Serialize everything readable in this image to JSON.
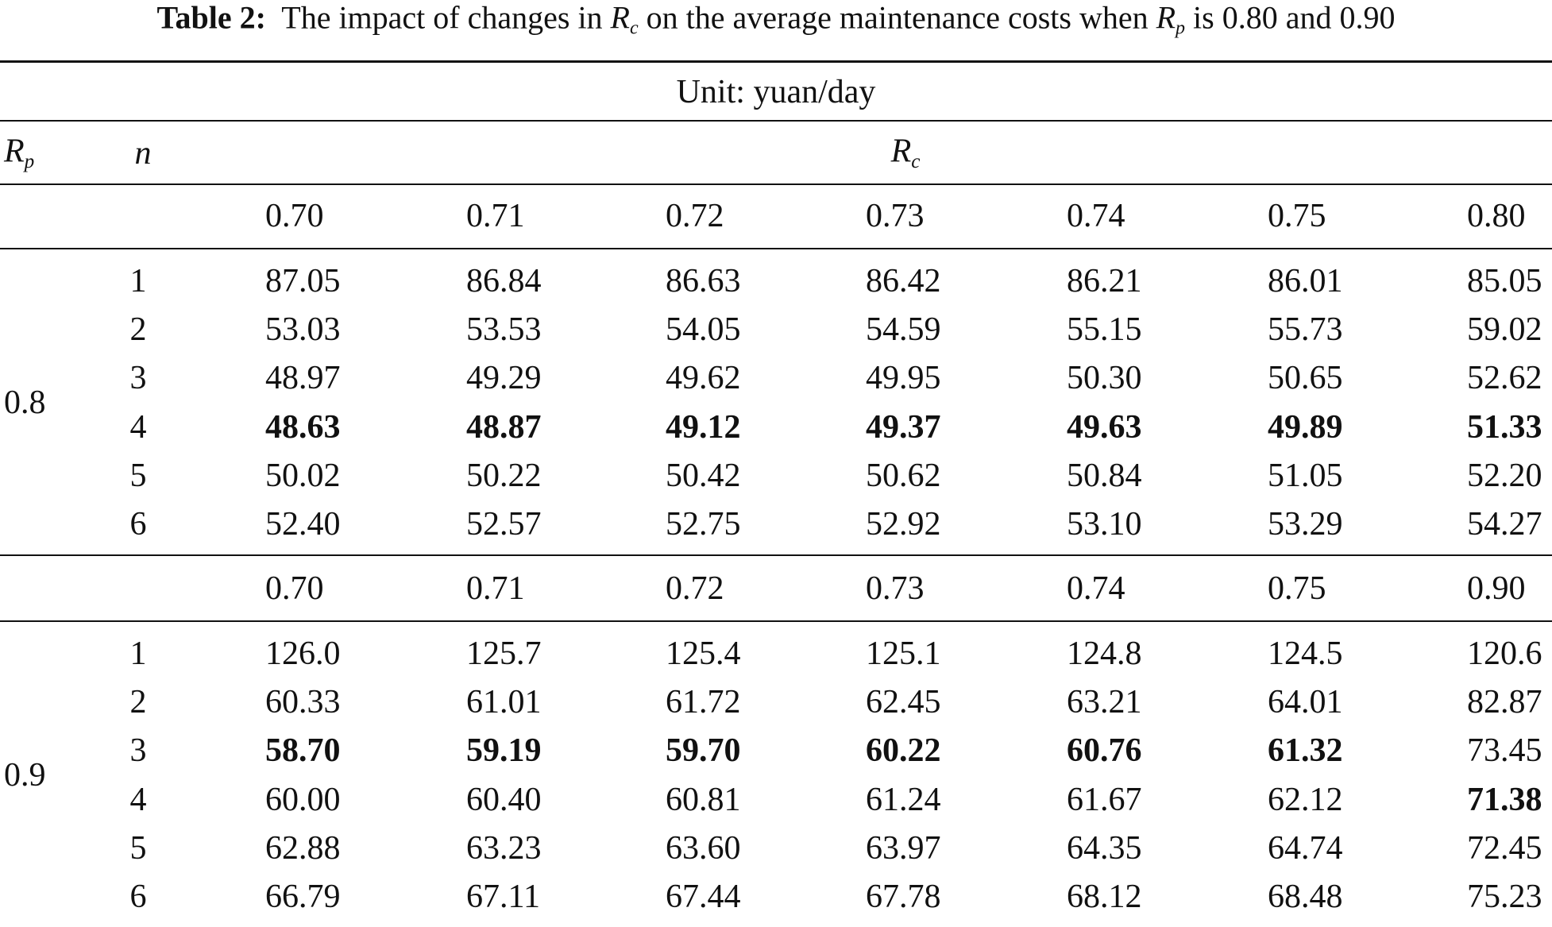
{
  "title": {
    "label": "Table 2:",
    "segments": [
      {
        "text": "The impact of changes in "
      },
      {
        "text": "R",
        "italic": true
      },
      {
        "text": "c",
        "sub": true
      },
      {
        "text": " on the average maintenance costs when "
      },
      {
        "text": "R",
        "italic": true
      },
      {
        "text": "p",
        "sub": true
      },
      {
        "text": " is 0.80 and 0.90"
      }
    ]
  },
  "unit": "Unit: yuan/day",
  "header": {
    "rp": {
      "symbol": "R",
      "sub": "p"
    },
    "n": "n",
    "rc": {
      "symbol": "R",
      "sub": "c"
    }
  },
  "blocks": [
    {
      "rp": "0.8",
      "columns": [
        "0.70",
        "0.71",
        "0.72",
        "0.73",
        "0.74",
        "0.75",
        "0.80"
      ],
      "rows": [
        {
          "n": "1",
          "values": [
            "87.05",
            "86.84",
            "86.63",
            "86.42",
            "86.21",
            "86.01",
            "85.05"
          ],
          "bold": []
        },
        {
          "n": "2",
          "values": [
            "53.03",
            "53.53",
            "54.05",
            "54.59",
            "55.15",
            "55.73",
            "59.02"
          ],
          "bold": []
        },
        {
          "n": "3",
          "values": [
            "48.97",
            "49.29",
            "49.62",
            "49.95",
            "50.30",
            "50.65",
            "52.62"
          ],
          "bold": []
        },
        {
          "n": "4",
          "values": [
            "48.63",
            "48.87",
            "49.12",
            "49.37",
            "49.63",
            "49.89",
            "51.33"
          ],
          "bold": [
            0,
            1,
            2,
            3,
            4,
            5,
            6
          ]
        },
        {
          "n": "5",
          "values": [
            "50.02",
            "50.22",
            "50.42",
            "50.62",
            "50.84",
            "51.05",
            "52.20"
          ],
          "bold": []
        },
        {
          "n": "6",
          "values": [
            "52.40",
            "52.57",
            "52.75",
            "52.92",
            "53.10",
            "53.29",
            "54.27"
          ],
          "bold": []
        }
      ]
    },
    {
      "rp": "0.9",
      "columns": [
        "0.70",
        "0.71",
        "0.72",
        "0.73",
        "0.74",
        "0.75",
        "0.90"
      ],
      "rows": [
        {
          "n": "1",
          "values": [
            "126.0",
            "125.7",
            "125.4",
            "125.1",
            "124.8",
            "124.5",
            "120.6"
          ],
          "bold": []
        },
        {
          "n": "2",
          "values": [
            "60.33",
            "61.01",
            "61.72",
            "62.45",
            "63.21",
            "64.01",
            "82.87"
          ],
          "bold": []
        },
        {
          "n": "3",
          "values": [
            "58.70",
            "59.19",
            "59.70",
            "60.22",
            "60.76",
            "61.32",
            "73.45"
          ],
          "bold": [
            0,
            1,
            2,
            3,
            4,
            5
          ]
        },
        {
          "n": "4",
          "values": [
            "60.00",
            "60.40",
            "60.81",
            "61.24",
            "61.67",
            "62.12",
            "71.38"
          ],
          "bold": [
            6
          ]
        },
        {
          "n": "5",
          "values": [
            "62.88",
            "63.23",
            "63.60",
            "63.97",
            "64.35",
            "64.74",
            "72.45"
          ],
          "bold": []
        },
        {
          "n": "6",
          "values": [
            "66.79",
            "67.11",
            "67.44",
            "67.78",
            "68.12",
            "68.48",
            "75.23"
          ],
          "bold": []
        }
      ]
    }
  ]
}
